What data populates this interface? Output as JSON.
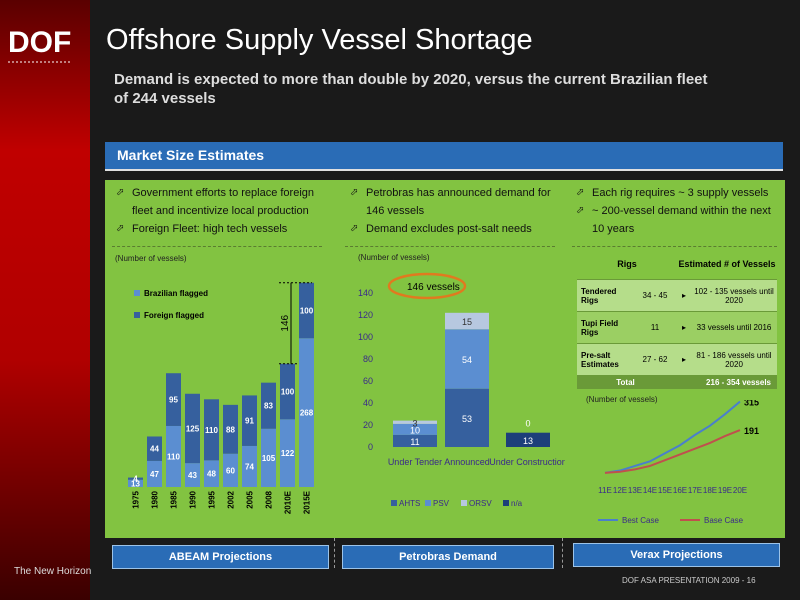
{
  "header": {
    "title": "Offshore Supply Vessel Shortage",
    "subtitle": "Demand is expected to more than double by 2020, versus the current Brazilian fleet of 244 vessels",
    "logo_text": "DOF",
    "tagline": "The New Horizon"
  },
  "panel": {
    "title": "Market Size Estimates"
  },
  "colors": {
    "background": "#1a1a1a",
    "panel_green": "#82c341",
    "header_blue": "#2a6cb6",
    "brazilian": "#5b8ed1",
    "foreign": "#36609e",
    "psv": "#5b8ed1",
    "ahts": "#36609e",
    "orsv": "#b7c8e0",
    "na": "#1d3f7a",
    "best_case": "#4a7fcc",
    "base_case": "#c0504d"
  },
  "columns": [
    {
      "bullets": [
        "Government efforts to replace foreign fleet and incentivize local production",
        "Foreign Fleet: high tech vessels"
      ],
      "note": "(Number of vessels)",
      "button": "ABEAM Projections"
    },
    {
      "bullets": [
        "Petrobras has announced demand for 146 vessels",
        "Demand excludes post-salt needs"
      ],
      "note": "(Number of vessels)",
      "button": "Petrobras Demand",
      "callout": "146 vessels"
    },
    {
      "bullets": [
        "Each rig requires ~ 3 supply vessels",
        "~ 200-vessel demand within the next 10 years"
      ],
      "note": "(Number of vessels)",
      "button": "Verax Projections"
    }
  ],
  "rigs_table": {
    "headers": [
      "Rigs",
      "Estimated # of Vessels"
    ],
    "rows": [
      {
        "label": "Tendered Rigs",
        "rigs": "34 - 45",
        "vessels": "102 - 135 vessels until 2020"
      },
      {
        "label": "Tupi Field Rigs",
        "rigs": "11",
        "vessels": "33 vessels until 2016"
      },
      {
        "label": "Pre-salt Estimates",
        "rigs": "27 - 62",
        "vessels": "81 - 186 vessels until 2020"
      }
    ],
    "total_label": "Total",
    "total_value": "216 - 354 vessels"
  },
  "footer": {
    "presentation": "DOF ASA PRESENTATION 2009 - 16"
  },
  "chart_data": [
    {
      "type": "bar",
      "stacked": true,
      "categories": [
        "1975",
        "1980",
        "1985",
        "1990",
        "1995",
        "2002",
        "2005",
        "2008",
        "2010E",
        "2015E"
      ],
      "series": [
        {
          "name": "Brazilian flagged",
          "values": [
            13,
            47,
            110,
            43,
            48,
            60,
            74,
            105,
            122,
            268
          ]
        },
        {
          "name": "Foreign flagged",
          "values": [
            4,
            44,
            95,
            125,
            110,
            88,
            91,
            83,
            100,
            100
          ]
        }
      ],
      "annotations": [
        "146"
      ],
      "legend": "top-left"
    },
    {
      "type": "bar",
      "stacked": true,
      "categories": [
        "Under Tender",
        "Announced",
        "Under Construction"
      ],
      "series": [
        {
          "name": "AHTS",
          "values": [
            11,
            53,
            0
          ]
        },
        {
          "name": "PSV",
          "values": [
            10,
            54,
            0
          ]
        },
        {
          "name": "ORSV",
          "values": [
            3,
            15,
            0
          ]
        },
        {
          "name": "n/a",
          "values": [
            0,
            0,
            13
          ]
        }
      ],
      "ylim": [
        0,
        140
      ],
      "yticks": [
        0,
        20,
        40,
        60,
        80,
        100,
        120,
        140
      ],
      "legend": "bottom"
    },
    {
      "type": "line",
      "x": [
        "11E",
        "12E",
        "13E",
        "14E",
        "15E",
        "16E",
        "17E",
        "18E",
        "19E",
        "20E"
      ],
      "series": [
        {
          "name": "Best Case",
          "values": [
            5,
            15,
            35,
            55,
            90,
            125,
            170,
            210,
            260,
            315
          ]
        },
        {
          "name": "Base Case",
          "values": [
            5,
            10,
            20,
            35,
            60,
            85,
            110,
            135,
            165,
            191
          ]
        }
      ],
      "end_labels": [
        "315",
        "191"
      ],
      "legend": "bottom"
    }
  ]
}
